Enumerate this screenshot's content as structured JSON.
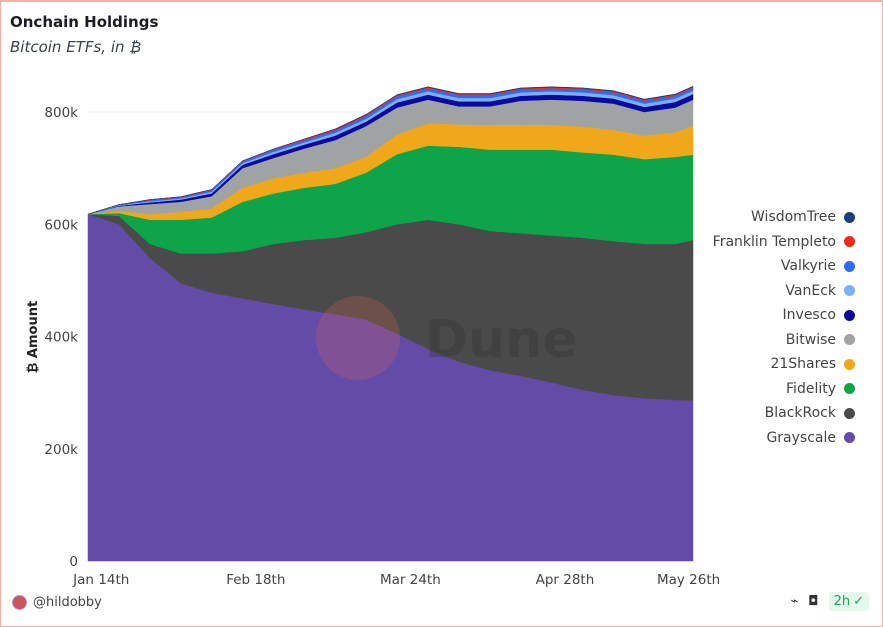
{
  "header": {
    "title": "Onchain Holdings",
    "subtitle": "Bitcoin ETFs, in ₿"
  },
  "footer": {
    "user": "@hildobby",
    "refresh": "2h",
    "icons": [
      "plug-icon",
      "camera-icon",
      "check-circle-icon"
    ]
  },
  "watermark": "Dune",
  "chart_data": {
    "type": "area",
    "stacked": true,
    "title": "Onchain Holdings",
    "ylabel": "₿ Amount",
    "xlabel": "",
    "ylim": [
      0,
      840000
    ],
    "yticks": [
      {
        "v": 0,
        "label": "0"
      },
      {
        "v": 200000,
        "label": "200k"
      },
      {
        "v": 400000,
        "label": "400k"
      },
      {
        "v": 600000,
        "label": "600k"
      },
      {
        "v": 800000,
        "label": "800k"
      }
    ],
    "xticks": [
      {
        "day": 3,
        "label": "Jan 14th"
      },
      {
        "day": 38,
        "label": "Feb 18th"
      },
      {
        "day": 73,
        "label": "Mar 24th"
      },
      {
        "day": 108,
        "label": "Apr 28th"
      },
      {
        "day": 136,
        "label": "May 26th"
      }
    ],
    "x_days": [
      0,
      7,
      14,
      21,
      28,
      35,
      42,
      49,
      56,
      63,
      70,
      77,
      84,
      91,
      98,
      105,
      112,
      119,
      126,
      133,
      137
    ],
    "legend_position": "right",
    "series": [
      {
        "name": "Grayscale",
        "color": "#634ba8",
        "values": [
          618,
          600,
          540,
          495,
          478,
          468,
          458,
          448,
          440,
          430,
          405,
          378,
          355,
          340,
          330,
          318,
          305,
          296,
          290,
          287,
          286
        ]
      },
      {
        "name": "BlackRock",
        "color": "#4a4a4a",
        "values": [
          0,
          15,
          25,
          53,
          70,
          84,
          107,
          124,
          136,
          156,
          195,
          230,
          245,
          248,
          254,
          262,
          271,
          274,
          275,
          278,
          286
        ]
      },
      {
        "name": "Fidelity",
        "color": "#0ea44a",
        "values": [
          0,
          5,
          43,
          60,
          64,
          88,
          90,
          93,
          96,
          106,
          125,
          132,
          138,
          145,
          149,
          153,
          152,
          154,
          151,
          155,
          152
        ]
      },
      {
        "name": "21Shares",
        "color": "#f0a81a",
        "values": [
          0,
          4,
          10,
          14,
          16,
          25,
          27,
          27,
          28,
          28,
          35,
          40,
          40,
          44,
          44,
          44,
          46,
          44,
          42,
          44,
          51
        ]
      },
      {
        "name": "Bitwise",
        "color": "#a0a3a3",
        "values": [
          0,
          8,
          18,
          18,
          22,
          35,
          36,
          43,
          50,
          55,
          48,
          42,
          32,
          33,
          43,
          45,
          46,
          47,
          42,
          44,
          47
        ]
      },
      {
        "name": "Invesco",
        "color": "#0a0a9c",
        "values": [
          0,
          1,
          3,
          4,
          5,
          6,
          7,
          7,
          8,
          8,
          9,
          9,
          9,
          9,
          9,
          9,
          9,
          9,
          9,
          10,
          10
        ]
      },
      {
        "name": "VanEck",
        "color": "#7ab0f7",
        "values": [
          0,
          1,
          2,
          2,
          3,
          3,
          4,
          4,
          5,
          5,
          6,
          6,
          6,
          6,
          6,
          6,
          6,
          6,
          6,
          6,
          6
        ]
      },
      {
        "name": "Valkyrie",
        "color": "#2f6cf0",
        "values": [
          0,
          1,
          2,
          2,
          3,
          3,
          4,
          4,
          4,
          5,
          5,
          5,
          5,
          5,
          5,
          5,
          5,
          5,
          5,
          5,
          5
        ]
      },
      {
        "name": "Franklin Templeto",
        "color": "#ee2a1c",
        "values": [
          0,
          0,
          1,
          1,
          1,
          1,
          1,
          2,
          2,
          2,
          2,
          2,
          2,
          2,
          2,
          2,
          2,
          2,
          2,
          2,
          2
        ]
      },
      {
        "name": "WisdomTree",
        "color": "#1b3f7a",
        "values": [
          0,
          0,
          0,
          0,
          0,
          0,
          0,
          0,
          1,
          1,
          1,
          1,
          1,
          1,
          1,
          1,
          1,
          1,
          1,
          1,
          1
        ]
      }
    ],
    "value_unit": "thousands"
  }
}
